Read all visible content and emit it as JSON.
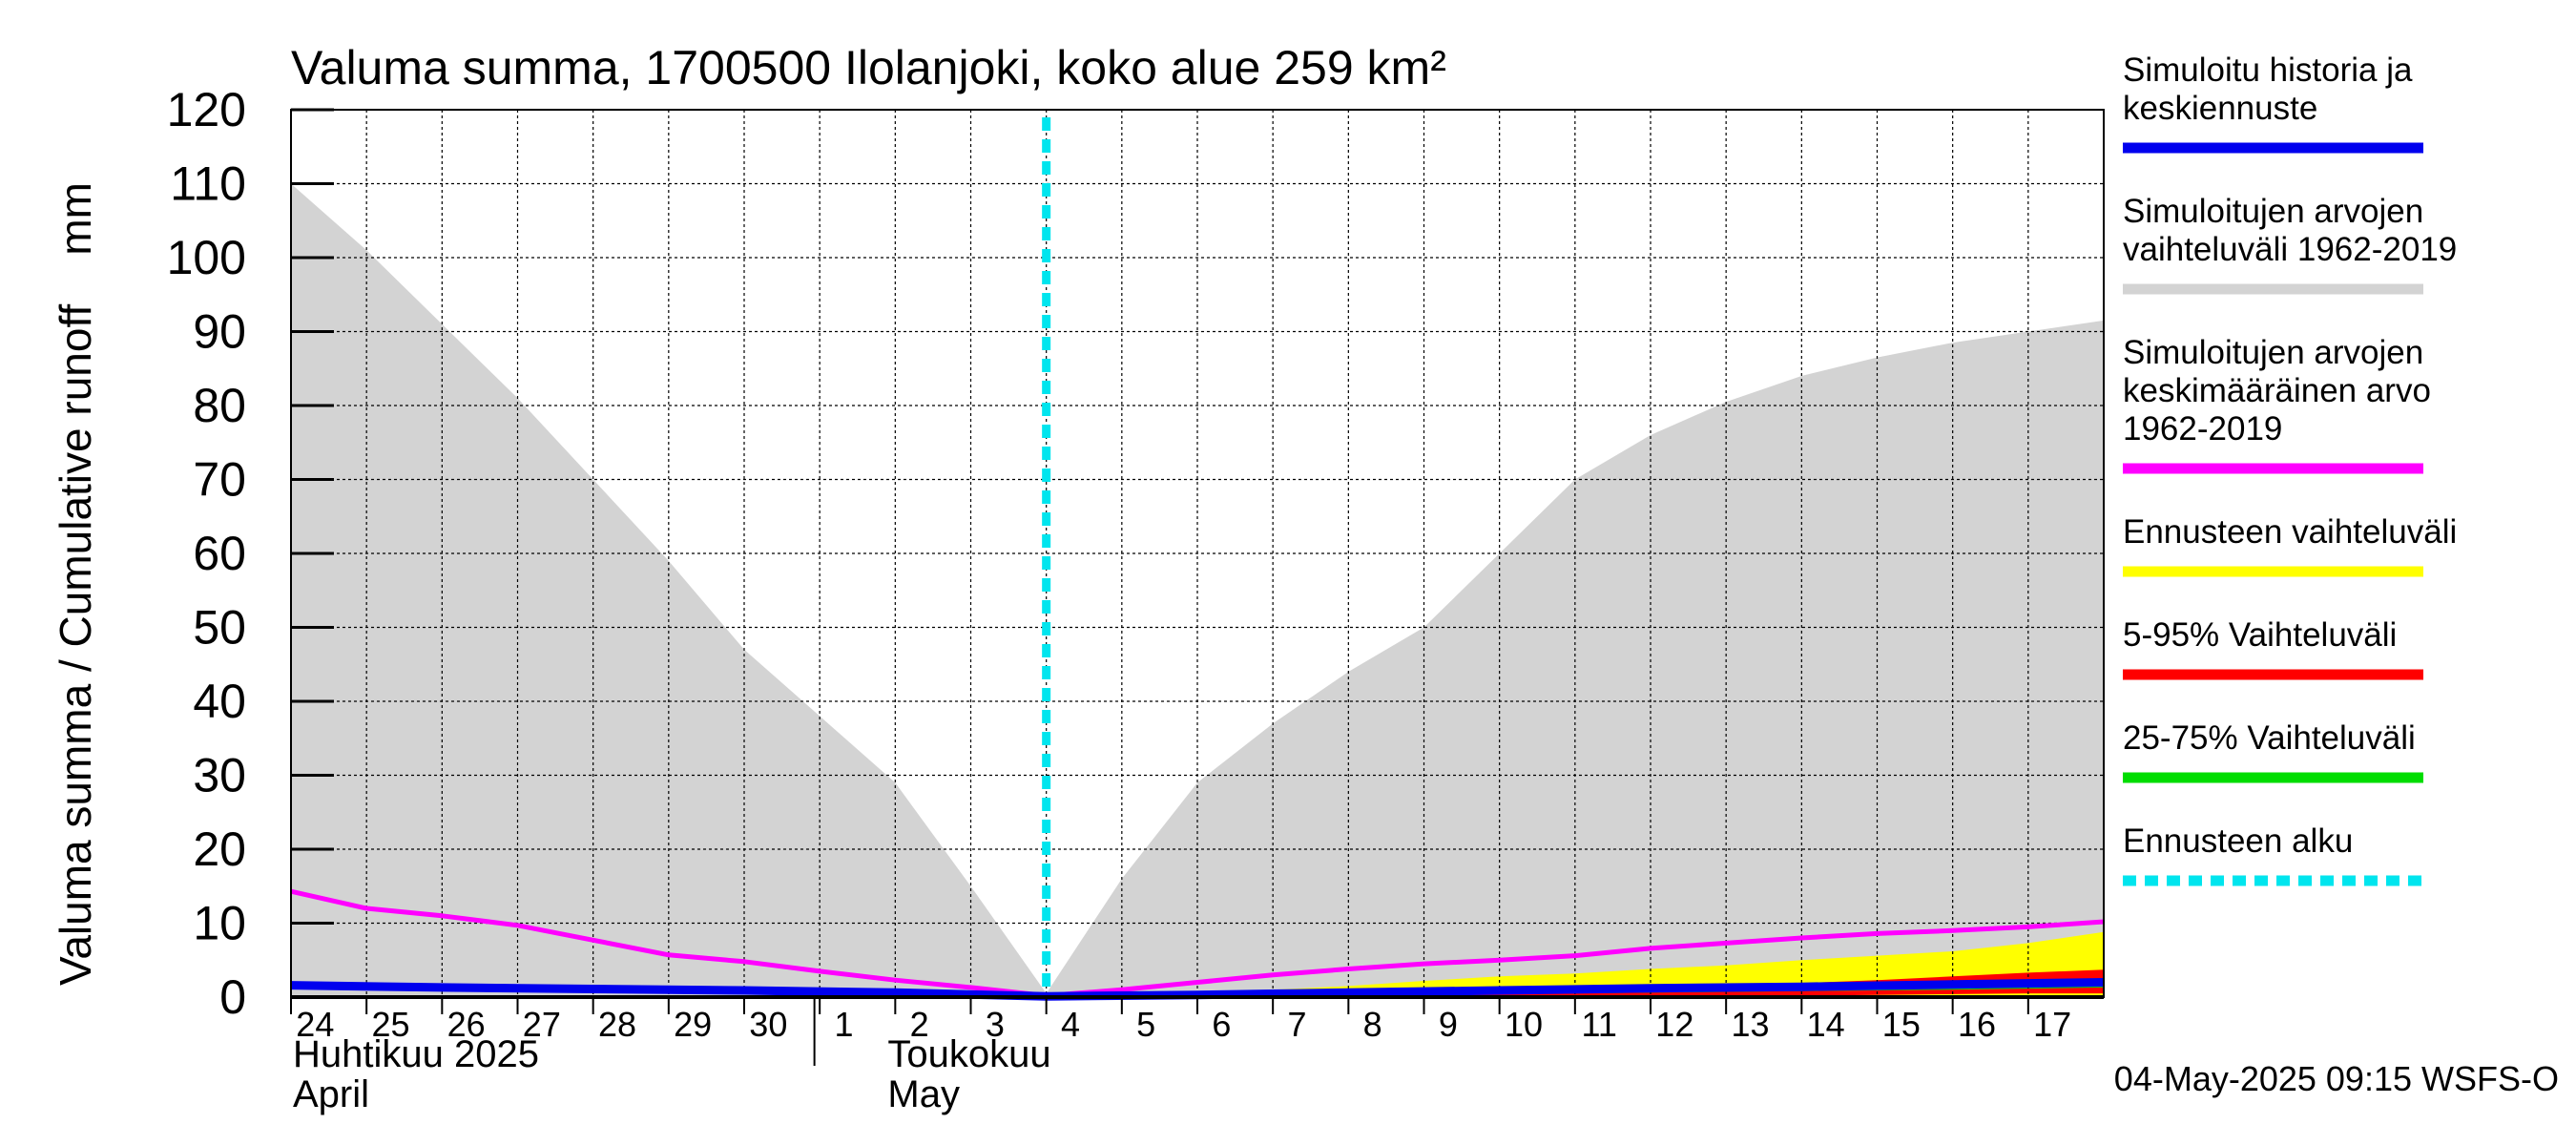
{
  "chart_data": {
    "type": "area",
    "title": "Valuma summa, 1700500 Ilolanjoki, koko alue 259 km²",
    "ylabel": "Valuma summa / Cumulative runoff    mm",
    "ylim": [
      0,
      120
    ],
    "yticks": [
      0,
      10,
      20,
      30,
      40,
      50,
      60,
      70,
      80,
      90,
      100,
      110,
      120
    ],
    "grid": true,
    "xlim": [
      0,
      24
    ],
    "xticks": [
      {
        "x": 0,
        "label": "24"
      },
      {
        "x": 1,
        "label": "25"
      },
      {
        "x": 2,
        "label": "26"
      },
      {
        "x": 3,
        "label": "27"
      },
      {
        "x": 4,
        "label": "28"
      },
      {
        "x": 5,
        "label": "29"
      },
      {
        "x": 6,
        "label": "30"
      },
      {
        "x": 7,
        "label": "1"
      },
      {
        "x": 8,
        "label": "2"
      },
      {
        "x": 9,
        "label": "3"
      },
      {
        "x": 10,
        "label": "4"
      },
      {
        "x": 11,
        "label": "5"
      },
      {
        "x": 12,
        "label": "6"
      },
      {
        "x": 13,
        "label": "7"
      },
      {
        "x": 14,
        "label": "8"
      },
      {
        "x": 15,
        "label": "9"
      },
      {
        "x": 16,
        "label": "10"
      },
      {
        "x": 17,
        "label": "11"
      },
      {
        "x": 18,
        "label": "12"
      },
      {
        "x": 19,
        "label": "13"
      },
      {
        "x": 20,
        "label": "14"
      },
      {
        "x": 21,
        "label": "15"
      },
      {
        "x": 22,
        "label": "16"
      },
      {
        "x": 23,
        "label": "17"
      }
    ],
    "month_labels": [
      {
        "x": 0,
        "fi": "Huhtikuu  2025",
        "en": "April"
      },
      {
        "x": 8,
        "fi": "Toukokuu",
        "en": "May"
      }
    ],
    "forecast_start_x": 10,
    "series": [
      {
        "name": "Simuloitujen arvojen vaihteluväli 1962-2019",
        "color": "#d3d3d3",
        "kind": "band",
        "x": [
          0,
          1,
          2,
          3,
          4,
          5,
          6,
          7,
          8,
          9,
          10,
          11,
          12,
          13,
          14,
          15,
          16,
          17,
          18,
          19,
          20,
          21,
          22,
          23,
          24
        ],
        "upper": [
          110,
          101,
          91,
          81,
          70,
          59,
          47,
          38,
          29,
          15,
          0.5,
          16,
          29,
          37,
          44,
          50,
          60,
          70,
          76,
          80.5,
          84,
          86.5,
          88.5,
          90,
          91.5
        ],
        "lower": [
          0,
          0,
          0,
          0,
          0,
          0,
          0,
          0,
          0,
          0,
          0,
          0,
          0,
          0,
          0,
          0,
          0,
          0,
          0,
          0,
          0,
          0,
          0,
          0,
          0
        ]
      },
      {
        "name": "Ennusteen vaihteluväli",
        "color": "#ffff00",
        "kind": "band",
        "x": [
          10,
          11,
          12,
          13,
          14,
          15,
          16,
          17,
          18,
          19,
          20,
          21,
          22,
          23,
          24
        ],
        "upper": [
          0.2,
          0.4,
          0.7,
          1.0,
          1.5,
          2.2,
          2.8,
          3.2,
          3.8,
          4.3,
          5.0,
          5.6,
          6.2,
          7.3,
          8.8
        ],
        "lower": [
          0,
          0,
          0,
          0,
          0,
          0,
          0,
          0,
          0,
          0,
          0,
          0,
          0,
          0,
          0
        ]
      },
      {
        "name": "5-95% Vaihteluväli",
        "color": "#ff0000",
        "kind": "band",
        "x": [
          10,
          12,
          14,
          16,
          18,
          20,
          21,
          22,
          23,
          24
        ],
        "upper": [
          0.1,
          0.3,
          0.6,
          1.0,
          1.4,
          1.9,
          2.3,
          2.8,
          3.3,
          3.7
        ],
        "lower": [
          0,
          0,
          0,
          0,
          0,
          0.2,
          0.3,
          0.4,
          0.5,
          0.5
        ]
      },
      {
        "name": "25-75% Vaihteluväli",
        "color": "#00dd00",
        "kind": "band",
        "x": [
          10,
          12,
          14,
          16,
          18,
          20,
          22,
          24
        ],
        "upper": [
          0.1,
          0.3,
          0.5,
          0.8,
          1.1,
          1.4,
          1.9,
          2.5
        ],
        "lower": [
          0,
          0.1,
          0.2,
          0.4,
          0.6,
          0.8,
          1.0,
          1.3
        ]
      },
      {
        "name": "Simuloitujen arvojen keskimääräinen arvo 1962-2019",
        "color": "#ff00ff",
        "kind": "line",
        "x": [
          0,
          1,
          2,
          3,
          4,
          5,
          6,
          7,
          8,
          9,
          10,
          11,
          12,
          13,
          14,
          15,
          16,
          17,
          18,
          19,
          20,
          21,
          22,
          23,
          24
        ],
        "values": [
          14.3,
          12.0,
          11.0,
          9.7,
          7.7,
          5.7,
          4.8,
          3.5,
          2.3,
          1.3,
          0.2,
          1.0,
          2.0,
          3.0,
          3.8,
          4.5,
          5.0,
          5.6,
          6.6,
          7.3,
          8.0,
          8.6,
          9.0,
          9.5,
          10.2
        ]
      },
      {
        "name": "Simuloitu historia ja keskiennuste",
        "color": "#0000ee",
        "kind": "line",
        "x": [
          0,
          2,
          4,
          6,
          8,
          10,
          12,
          14,
          16,
          18,
          20,
          22,
          24
        ],
        "values": [
          1.6,
          1.3,
          1.1,
          0.9,
          0.6,
          0.1,
          0.3,
          0.6,
          0.9,
          1.2,
          1.4,
          1.7,
          2.0
        ]
      }
    ],
    "legend": {
      "placement": "right",
      "items": [
        {
          "lines": [
            "Simuloitu historia ja",
            "keskiennuste"
          ],
          "color": "#0000ee",
          "style": "solid"
        },
        {
          "lines": [
            "Simuloitujen arvojen",
            "vaihteluväli 1962-2019"
          ],
          "color": "#d3d3d3",
          "style": "solid"
        },
        {
          "lines": [
            "Simuloitujen arvojen",
            "keskimääräinen arvo",
            "   1962-2019"
          ],
          "color": "#ff00ff",
          "style": "solid"
        },
        {
          "lines": [
            "Ennusteen vaihteluväli"
          ],
          "color": "#ffff00",
          "style": "solid"
        },
        {
          "lines": [
            "5-95% Vaihteluväli"
          ],
          "color": "#ff0000",
          "style": "solid"
        },
        {
          "lines": [
            "25-75% Vaihteluväli"
          ],
          "color": "#00dd00",
          "style": "solid"
        },
        {
          "lines": [
            "Ennusteen alku"
          ],
          "color": "#00e5ee",
          "style": "dashed"
        }
      ]
    },
    "footer": "04-May-2025 09:15 WSFS-O"
  }
}
